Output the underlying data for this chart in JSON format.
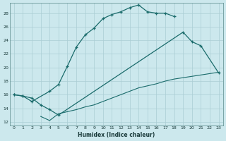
{
  "xlabel": "Humidex (Indice chaleur)",
  "bg_color": "#cce8ed",
  "grid_color": "#aacdd4",
  "line_color": "#1a6b6b",
  "xlim": [
    -0.5,
    23.5
  ],
  "ylim": [
    11.5,
    29.5
  ],
  "yticks": [
    12,
    14,
    16,
    18,
    20,
    22,
    24,
    26,
    28
  ],
  "xticks": [
    0,
    1,
    2,
    3,
    4,
    5,
    6,
    7,
    8,
    9,
    10,
    11,
    12,
    13,
    14,
    15,
    16,
    17,
    18,
    19,
    20,
    21,
    22,
    23
  ],
  "line1_x": [
    0,
    1,
    2,
    4,
    5,
    6,
    7,
    8,
    9,
    10,
    11,
    12,
    13,
    14,
    15,
    16,
    17,
    18
  ],
  "line1_y": [
    16.0,
    15.8,
    15.0,
    16.5,
    17.5,
    20.2,
    23.0,
    24.8,
    25.8,
    27.2,
    27.8,
    28.2,
    28.8,
    29.2,
    28.2,
    28.0,
    28.0,
    27.5
  ],
  "line2_x": [
    0,
    1,
    2,
    3,
    4,
    5,
    19,
    20,
    21,
    23
  ],
  "line2_y": [
    16.0,
    15.8,
    15.5,
    14.5,
    13.8,
    13.0,
    25.2,
    23.8,
    23.2,
    19.2
  ],
  "line3_x": [
    3,
    4,
    5,
    6,
    7,
    8,
    9,
    10,
    11,
    12,
    13,
    14,
    15,
    16,
    17,
    18,
    19,
    20,
    21,
    22,
    23
  ],
  "line3_y": [
    12.8,
    12.2,
    13.2,
    13.5,
    13.8,
    14.2,
    14.5,
    15.0,
    15.5,
    16.0,
    16.5,
    17.0,
    17.3,
    17.6,
    18.0,
    18.3,
    18.5,
    18.7,
    18.9,
    19.1,
    19.3
  ]
}
